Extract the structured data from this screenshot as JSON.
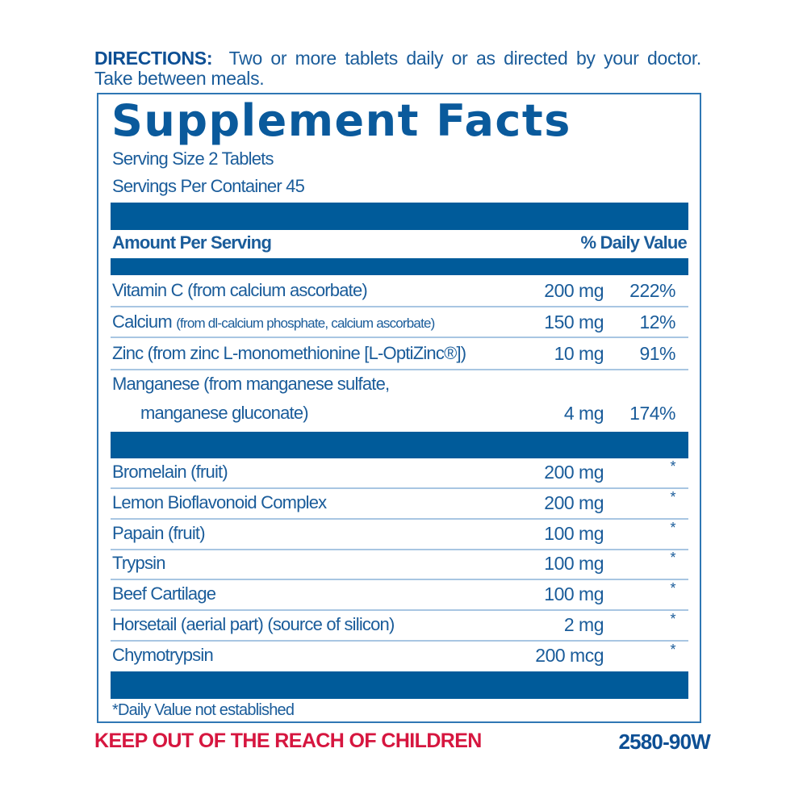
{
  "directions": {
    "label": "DIRECTIONS:",
    "text": "Two or more tablets daily or as directed by your doctor. Take between meals."
  },
  "title": "Supplement Facts",
  "serving_size": "Serving Size 2 Tablets",
  "servings_per_container": "Servings Per Container 45",
  "header": {
    "amount": "Amount Per Serving",
    "dv": "% Daily Value"
  },
  "nutrients": [
    {
      "name": "Vitamin C (from calcium ascorbate)",
      "amount": "200 mg",
      "dv": "222%"
    },
    {
      "name": "Calcium",
      "name_detail": "(from dl-calcium phosphate, calcium ascorbate)",
      "amount": "150 mg",
      "dv": "12%"
    },
    {
      "name": "Zinc (from zinc L-monomethionine [L-OptiZinc®])",
      "amount": "10 mg",
      "dv": "91%"
    },
    {
      "name": "Manganese (from manganese sulfate,",
      "name_line2": "manganese gluconate)",
      "amount": "4 mg",
      "dv": "174%"
    }
  ],
  "other": [
    {
      "name": "Bromelain (fruit)",
      "amount": "200 mg",
      "dv": "*"
    },
    {
      "name": "Lemon Bioflavonoid Complex",
      "amount": "200 mg",
      "dv": "*"
    },
    {
      "name": "Papain (fruit)",
      "amount": "100 mg",
      "dv": "*"
    },
    {
      "name": "Trypsin",
      "amount": "100 mg",
      "dv": "*"
    },
    {
      "name": "Beef Cartilage",
      "amount": "100 mg",
      "dv": "*"
    },
    {
      "name": "Horsetail (aerial part) (source of silicon)",
      "amount": "2 mg",
      "dv": "*"
    },
    {
      "name": "Chymotrypsin",
      "amount": "200 mcg",
      "dv": "*"
    }
  ],
  "footnote": "*Daily Value not established",
  "warning": "KEEP OUT OF THE REACH OF CHILDREN",
  "code": "2580-90W",
  "colors": {
    "blue": "#005b9a",
    "red": "#d6163f"
  }
}
